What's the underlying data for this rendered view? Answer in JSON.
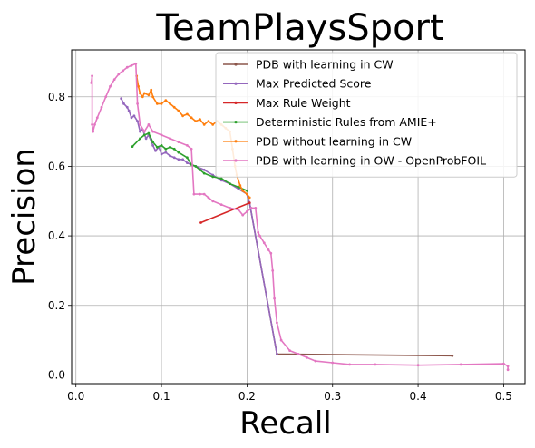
{
  "chart_data": {
    "type": "line",
    "title": "TeamPlaysSport",
    "xlabel": "Recall",
    "ylabel": "Precision",
    "xlim": [
      -0.005,
      0.525
    ],
    "ylim": [
      -0.025,
      0.935
    ],
    "xticks": [
      0.0,
      0.1,
      0.2,
      0.3,
      0.4,
      0.5
    ],
    "xtick_labels": [
      "0.0",
      "0.1",
      "0.2",
      "0.3",
      "0.4",
      "0.5"
    ],
    "yticks": [
      0.0,
      0.2,
      0.4,
      0.6,
      0.8
    ],
    "ytick_labels": [
      "0.0",
      "0.2",
      "0.4",
      "0.6",
      "0.8"
    ],
    "grid": true,
    "legend_position": "top-right",
    "series": [
      {
        "name": "PDB with learning in CW",
        "color": "#8c564b",
        "points": [
          [
            0.203,
            0.495
          ],
          [
            0.235,
            0.06
          ],
          [
            0.44,
            0.055
          ]
        ]
      },
      {
        "name": "Max Predicted Score",
        "color": "#9467bd",
        "points": [
          [
            0.053,
            0.795
          ],
          [
            0.056,
            0.78
          ],
          [
            0.06,
            0.77
          ],
          [
            0.062,
            0.76
          ],
          [
            0.065,
            0.74
          ],
          [
            0.068,
            0.745
          ],
          [
            0.072,
            0.73
          ],
          [
            0.075,
            0.7
          ],
          [
            0.078,
            0.705
          ],
          [
            0.082,
            0.68
          ],
          [
            0.085,
            0.69
          ],
          [
            0.09,
            0.66
          ],
          [
            0.093,
            0.645
          ],
          [
            0.097,
            0.655
          ],
          [
            0.1,
            0.635
          ],
          [
            0.105,
            0.64
          ],
          [
            0.11,
            0.63
          ],
          [
            0.115,
            0.625
          ],
          [
            0.12,
            0.62
          ],
          [
            0.125,
            0.62
          ],
          [
            0.13,
            0.61
          ],
          [
            0.14,
            0.6
          ],
          [
            0.15,
            0.59
          ],
          [
            0.16,
            0.575
          ],
          [
            0.17,
            0.56
          ],
          [
            0.18,
            0.55
          ],
          [
            0.19,
            0.535
          ],
          [
            0.2,
            0.52
          ],
          [
            0.203,
            0.495
          ],
          [
            0.235,
            0.06
          ]
        ]
      },
      {
        "name": "Max Rule Weight",
        "color": "#d62728",
        "points": [
          [
            0.146,
            0.438
          ],
          [
            0.203,
            0.495
          ]
        ]
      },
      {
        "name": "Deterministic Rules from AMIE+",
        "color": "#2ca02c",
        "points": [
          [
            0.066,
            0.657
          ],
          [
            0.075,
            0.68
          ],
          [
            0.08,
            0.69
          ],
          [
            0.085,
            0.695
          ],
          [
            0.09,
            0.67
          ],
          [
            0.095,
            0.655
          ],
          [
            0.1,
            0.66
          ],
          [
            0.105,
            0.65
          ],
          [
            0.11,
            0.655
          ],
          [
            0.115,
            0.65
          ],
          [
            0.12,
            0.64
          ],
          [
            0.13,
            0.625
          ],
          [
            0.135,
            0.605
          ],
          [
            0.14,
            0.6
          ],
          [
            0.145,
            0.59
          ],
          [
            0.15,
            0.58
          ],
          [
            0.16,
            0.57
          ],
          [
            0.17,
            0.565
          ],
          [
            0.18,
            0.55
          ],
          [
            0.19,
            0.54
          ],
          [
            0.2,
            0.53
          ]
        ]
      },
      {
        "name": "PDB without learning in CW",
        "color": "#ff7f0e",
        "points": [
          [
            0.071,
            0.86
          ],
          [
            0.073,
            0.83
          ],
          [
            0.075,
            0.81
          ],
          [
            0.078,
            0.8
          ],
          [
            0.08,
            0.81
          ],
          [
            0.085,
            0.805
          ],
          [
            0.088,
            0.82
          ],
          [
            0.09,
            0.8
          ],
          [
            0.095,
            0.78
          ],
          [
            0.1,
            0.78
          ],
          [
            0.105,
            0.79
          ],
          [
            0.11,
            0.78
          ],
          [
            0.115,
            0.77
          ],
          [
            0.12,
            0.76
          ],
          [
            0.125,
            0.745
          ],
          [
            0.13,
            0.75
          ],
          [
            0.135,
            0.74
          ],
          [
            0.14,
            0.73
          ],
          [
            0.145,
            0.735
          ],
          [
            0.15,
            0.72
          ],
          [
            0.155,
            0.73
          ],
          [
            0.16,
            0.72
          ],
          [
            0.165,
            0.73
          ],
          [
            0.17,
            0.72
          ],
          [
            0.175,
            0.71
          ],
          [
            0.18,
            0.7
          ],
          [
            0.183,
            0.65
          ],
          [
            0.186,
            0.6
          ],
          [
            0.188,
            0.575
          ],
          [
            0.192,
            0.545
          ],
          [
            0.195,
            0.53
          ],
          [
            0.2,
            0.52
          ],
          [
            0.203,
            0.51
          ]
        ]
      },
      {
        "name": "PDB with learning in OW - OpenProbFOIL",
        "color": "#e377c2",
        "points": [
          [
            0.018,
            0.84
          ],
          [
            0.019,
            0.86
          ],
          [
            0.019,
            0.72
          ],
          [
            0.02,
            0.7
          ],
          [
            0.022,
            0.72
          ],
          [
            0.025,
            0.74
          ],
          [
            0.03,
            0.77
          ],
          [
            0.035,
            0.8
          ],
          [
            0.04,
            0.83
          ],
          [
            0.045,
            0.85
          ],
          [
            0.05,
            0.865
          ],
          [
            0.055,
            0.875
          ],
          [
            0.06,
            0.885
          ],
          [
            0.065,
            0.89
          ],
          [
            0.07,
            0.895
          ],
          [
            0.072,
            0.78
          ],
          [
            0.075,
            0.72
          ],
          [
            0.08,
            0.7
          ],
          [
            0.085,
            0.72
          ],
          [
            0.09,
            0.7
          ],
          [
            0.1,
            0.69
          ],
          [
            0.11,
            0.68
          ],
          [
            0.12,
            0.67
          ],
          [
            0.13,
            0.66
          ],
          [
            0.135,
            0.65
          ],
          [
            0.138,
            0.52
          ],
          [
            0.145,
            0.52
          ],
          [
            0.15,
            0.52
          ],
          [
            0.155,
            0.51
          ],
          [
            0.16,
            0.5
          ],
          [
            0.17,
            0.49
          ],
          [
            0.18,
            0.48
          ],
          [
            0.19,
            0.475
          ],
          [
            0.195,
            0.46
          ],
          [
            0.2,
            0.47
          ],
          [
            0.205,
            0.48
          ],
          [
            0.21,
            0.48
          ],
          [
            0.213,
            0.41
          ],
          [
            0.215,
            0.4
          ],
          [
            0.22,
            0.38
          ],
          [
            0.225,
            0.36
          ],
          [
            0.228,
            0.35
          ],
          [
            0.23,
            0.3
          ],
          [
            0.232,
            0.22
          ],
          [
            0.235,
            0.15
          ],
          [
            0.24,
            0.1
          ],
          [
            0.25,
            0.07
          ],
          [
            0.26,
            0.06
          ],
          [
            0.27,
            0.05
          ],
          [
            0.28,
            0.04
          ],
          [
            0.3,
            0.035
          ],
          [
            0.32,
            0.03
          ],
          [
            0.35,
            0.03
          ],
          [
            0.4,
            0.028
          ],
          [
            0.45,
            0.03
          ],
          [
            0.5,
            0.032
          ],
          [
            0.505,
            0.025
          ],
          [
            0.505,
            0.015
          ]
        ]
      }
    ]
  }
}
